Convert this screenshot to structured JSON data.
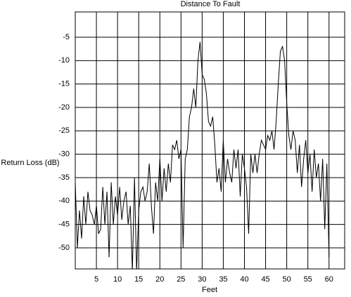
{
  "chart_data": {
    "type": "line",
    "title": "Distance To Fault",
    "x_label": "Feet",
    "y_label": "Return Loss (dB)",
    "xlim": [
      0,
      63.7
    ],
    "ylim": [
      -54.5,
      0.4
    ],
    "xticks": [
      5,
      10,
      15,
      20,
      25,
      30,
      35,
      40,
      45,
      50,
      55,
      60
    ],
    "yticks": [
      -50,
      -45,
      -40,
      -35,
      -30,
      -25,
      -20,
      -15,
      -10,
      -5
    ],
    "grid": true,
    "series": [
      {
        "color": "#000000",
        "x": [
          0,
          0.5,
          1,
          1.5,
          2,
          2.5,
          3,
          3.5,
          4,
          4.5,
          5,
          5.5,
          6,
          6.5,
          7,
          7.5,
          8,
          8.5,
          9,
          9.5,
          10,
          10.5,
          11,
          11.5,
          12,
          12.5,
          13,
          13.5,
          14,
          14.5,
          15,
          15.5,
          16,
          16.5,
          17,
          17.5,
          18,
          18.5,
          19,
          19.5,
          20,
          20.5,
          21,
          21.5,
          22,
          22.5,
          23,
          23.5,
          24,
          24.5,
          25,
          25.5,
          26,
          26.5,
          27,
          27.5,
          28,
          28.5,
          29,
          29.5,
          30,
          30.5,
          31,
          31.5,
          32,
          32.5,
          33,
          33.5,
          34,
          34.5,
          35,
          35.5,
          36,
          36.5,
          37,
          37.5,
          38,
          38.5,
          39,
          39.5,
          40,
          40.5,
          41,
          41.5,
          42,
          42.5,
          43,
          43.5,
          44,
          44.5,
          45,
          45.5,
          46,
          46.5,
          47,
          47.5,
          48,
          48.5,
          49,
          49.5,
          50,
          50.5,
          51,
          51.5,
          52,
          52.5,
          53,
          53.5,
          54,
          54.5,
          55,
          55.5,
          56,
          56.5,
          57,
          57.5,
          58,
          58.5,
          59,
          59.5,
          60
        ],
        "values": [
          -36,
          -50,
          -42,
          -48,
          -39,
          -45,
          -38,
          -42,
          -43,
          -45,
          -41,
          -47,
          -46,
          -37,
          -45,
          -38,
          -52,
          -36,
          -45,
          -39,
          -43,
          -37,
          -44,
          -40,
          -38,
          -45,
          -41,
          -55,
          -35,
          -55,
          -42,
          -38,
          -37,
          -40,
          -38,
          -32,
          -41,
          -47,
          -36,
          -40,
          -31,
          -40,
          -33,
          -38,
          -32,
          -36,
          -28,
          -29,
          -27,
          -31,
          -29,
          -50,
          -31,
          -29,
          -22,
          -20,
          -16,
          -20,
          -10,
          -6,
          -13,
          -14,
          -17,
          -23,
          -24,
          -22,
          -28,
          -36,
          -33,
          -38,
          -27,
          -36,
          -31,
          -34,
          -36,
          -29,
          -33,
          -29,
          -39,
          -30,
          -33,
          -37,
          -47,
          -30,
          -34,
          -30,
          -34,
          -30,
          -27,
          -28,
          -29,
          -26,
          -27,
          -25,
          -29,
          -23,
          -15,
          -8,
          -7,
          -10,
          -19,
          -26,
          -29,
          -25,
          -27,
          -34,
          -28,
          -37,
          -31,
          -27,
          -34,
          -30,
          -38,
          -29,
          -35,
          -32,
          -40,
          -31,
          -46,
          -32,
          -52
        ]
      }
    ]
  }
}
